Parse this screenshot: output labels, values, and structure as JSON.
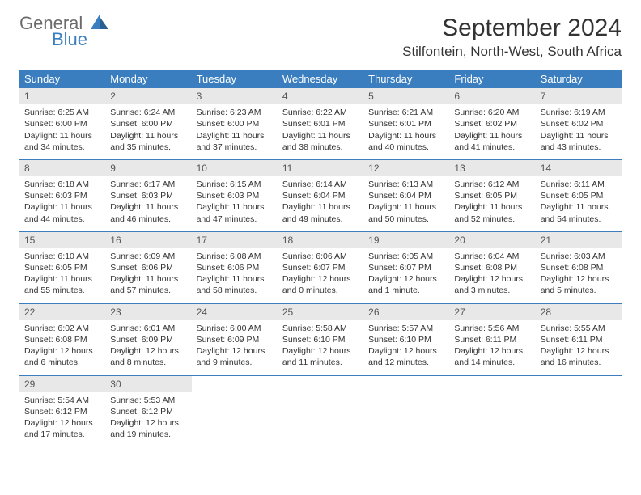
{
  "logo": {
    "line1": "General",
    "line2": "Blue"
  },
  "title": "September 2024",
  "location": "Stilfontein, North-West, South Africa",
  "colors": {
    "header_bg": "#3a7ebf",
    "header_text": "#ffffff",
    "daynum_bg": "#e8e8e8",
    "body_bg": "#ffffff",
    "logo_gray": "#6b6b6b",
    "logo_blue": "#3a7ebf"
  },
  "day_names": [
    "Sunday",
    "Monday",
    "Tuesday",
    "Wednesday",
    "Thursday",
    "Friday",
    "Saturday"
  ],
  "weeks": [
    [
      {
        "n": "1",
        "sr": "Sunrise: 6:25 AM",
        "ss": "Sunset: 6:00 PM",
        "d1": "Daylight: 11 hours",
        "d2": "and 34 minutes."
      },
      {
        "n": "2",
        "sr": "Sunrise: 6:24 AM",
        "ss": "Sunset: 6:00 PM",
        "d1": "Daylight: 11 hours",
        "d2": "and 35 minutes."
      },
      {
        "n": "3",
        "sr": "Sunrise: 6:23 AM",
        "ss": "Sunset: 6:00 PM",
        "d1": "Daylight: 11 hours",
        "d2": "and 37 minutes."
      },
      {
        "n": "4",
        "sr": "Sunrise: 6:22 AM",
        "ss": "Sunset: 6:01 PM",
        "d1": "Daylight: 11 hours",
        "d2": "and 38 minutes."
      },
      {
        "n": "5",
        "sr": "Sunrise: 6:21 AM",
        "ss": "Sunset: 6:01 PM",
        "d1": "Daylight: 11 hours",
        "d2": "and 40 minutes."
      },
      {
        "n": "6",
        "sr": "Sunrise: 6:20 AM",
        "ss": "Sunset: 6:02 PM",
        "d1": "Daylight: 11 hours",
        "d2": "and 41 minutes."
      },
      {
        "n": "7",
        "sr": "Sunrise: 6:19 AM",
        "ss": "Sunset: 6:02 PM",
        "d1": "Daylight: 11 hours",
        "d2": "and 43 minutes."
      }
    ],
    [
      {
        "n": "8",
        "sr": "Sunrise: 6:18 AM",
        "ss": "Sunset: 6:03 PM",
        "d1": "Daylight: 11 hours",
        "d2": "and 44 minutes."
      },
      {
        "n": "9",
        "sr": "Sunrise: 6:17 AM",
        "ss": "Sunset: 6:03 PM",
        "d1": "Daylight: 11 hours",
        "d2": "and 46 minutes."
      },
      {
        "n": "10",
        "sr": "Sunrise: 6:15 AM",
        "ss": "Sunset: 6:03 PM",
        "d1": "Daylight: 11 hours",
        "d2": "and 47 minutes."
      },
      {
        "n": "11",
        "sr": "Sunrise: 6:14 AM",
        "ss": "Sunset: 6:04 PM",
        "d1": "Daylight: 11 hours",
        "d2": "and 49 minutes."
      },
      {
        "n": "12",
        "sr": "Sunrise: 6:13 AM",
        "ss": "Sunset: 6:04 PM",
        "d1": "Daylight: 11 hours",
        "d2": "and 50 minutes."
      },
      {
        "n": "13",
        "sr": "Sunrise: 6:12 AM",
        "ss": "Sunset: 6:05 PM",
        "d1": "Daylight: 11 hours",
        "d2": "and 52 minutes."
      },
      {
        "n": "14",
        "sr": "Sunrise: 6:11 AM",
        "ss": "Sunset: 6:05 PM",
        "d1": "Daylight: 11 hours",
        "d2": "and 54 minutes."
      }
    ],
    [
      {
        "n": "15",
        "sr": "Sunrise: 6:10 AM",
        "ss": "Sunset: 6:05 PM",
        "d1": "Daylight: 11 hours",
        "d2": "and 55 minutes."
      },
      {
        "n": "16",
        "sr": "Sunrise: 6:09 AM",
        "ss": "Sunset: 6:06 PM",
        "d1": "Daylight: 11 hours",
        "d2": "and 57 minutes."
      },
      {
        "n": "17",
        "sr": "Sunrise: 6:08 AM",
        "ss": "Sunset: 6:06 PM",
        "d1": "Daylight: 11 hours",
        "d2": "and 58 minutes."
      },
      {
        "n": "18",
        "sr": "Sunrise: 6:06 AM",
        "ss": "Sunset: 6:07 PM",
        "d1": "Daylight: 12 hours",
        "d2": "and 0 minutes."
      },
      {
        "n": "19",
        "sr": "Sunrise: 6:05 AM",
        "ss": "Sunset: 6:07 PM",
        "d1": "Daylight: 12 hours",
        "d2": "and 1 minute."
      },
      {
        "n": "20",
        "sr": "Sunrise: 6:04 AM",
        "ss": "Sunset: 6:08 PM",
        "d1": "Daylight: 12 hours",
        "d2": "and 3 minutes."
      },
      {
        "n": "21",
        "sr": "Sunrise: 6:03 AM",
        "ss": "Sunset: 6:08 PM",
        "d1": "Daylight: 12 hours",
        "d2": "and 5 minutes."
      }
    ],
    [
      {
        "n": "22",
        "sr": "Sunrise: 6:02 AM",
        "ss": "Sunset: 6:08 PM",
        "d1": "Daylight: 12 hours",
        "d2": "and 6 minutes."
      },
      {
        "n": "23",
        "sr": "Sunrise: 6:01 AM",
        "ss": "Sunset: 6:09 PM",
        "d1": "Daylight: 12 hours",
        "d2": "and 8 minutes."
      },
      {
        "n": "24",
        "sr": "Sunrise: 6:00 AM",
        "ss": "Sunset: 6:09 PM",
        "d1": "Daylight: 12 hours",
        "d2": "and 9 minutes."
      },
      {
        "n": "25",
        "sr": "Sunrise: 5:58 AM",
        "ss": "Sunset: 6:10 PM",
        "d1": "Daylight: 12 hours",
        "d2": "and 11 minutes."
      },
      {
        "n": "26",
        "sr": "Sunrise: 5:57 AM",
        "ss": "Sunset: 6:10 PM",
        "d1": "Daylight: 12 hours",
        "d2": "and 12 minutes."
      },
      {
        "n": "27",
        "sr": "Sunrise: 5:56 AM",
        "ss": "Sunset: 6:11 PM",
        "d1": "Daylight: 12 hours",
        "d2": "and 14 minutes."
      },
      {
        "n": "28",
        "sr": "Sunrise: 5:55 AM",
        "ss": "Sunset: 6:11 PM",
        "d1": "Daylight: 12 hours",
        "d2": "and 16 minutes."
      }
    ],
    [
      {
        "n": "29",
        "sr": "Sunrise: 5:54 AM",
        "ss": "Sunset: 6:12 PM",
        "d1": "Daylight: 12 hours",
        "d2": "and 17 minutes."
      },
      {
        "n": "30",
        "sr": "Sunrise: 5:53 AM",
        "ss": "Sunset: 6:12 PM",
        "d1": "Daylight: 12 hours",
        "d2": "and 19 minutes."
      },
      {
        "empty": true
      },
      {
        "empty": true
      },
      {
        "empty": true
      },
      {
        "empty": true
      },
      {
        "empty": true
      }
    ]
  ]
}
